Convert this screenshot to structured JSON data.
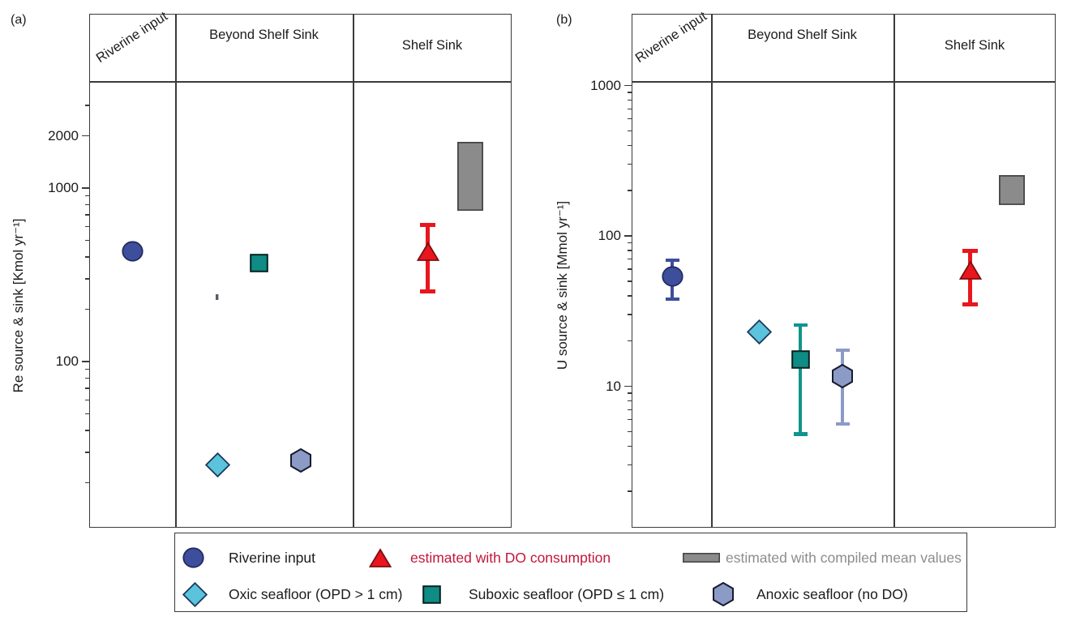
{
  "figure": {
    "background": "#ffffff"
  },
  "colors": {
    "riverine_fill": "#3D4E9C",
    "riverine_stroke": "#232B60",
    "oxic_fill": "#5CC3DC",
    "oxic_stroke": "#1A3C5E",
    "suboxic_fill": "#0E8C85",
    "suboxic_stroke": "#06211F",
    "suboxic_bar": "#10948C",
    "anoxic_fill": "#8C9AC6",
    "anoxic_stroke": "#171B2E",
    "do_est_fill": "#E9161D",
    "do_est_stroke": "#7E0E12",
    "do_est_bar": "#E9161D",
    "compiled_fill": "#8B8B8B",
    "compiled_stroke": "#474747",
    "stray_fill": "#5A5A66",
    "stray_stroke": "#5A5A66",
    "legend_red_text": "#C3173B",
    "legend_gray_text": "#8D8D8D",
    "axis": "#3a3a3a",
    "text": "#1b1b1b"
  },
  "chart_data": [
    {
      "id": "a",
      "type": "scatter",
      "panel_label": "(a)",
      "y_axis": {
        "title": "Re source & sink [Kmol yr⁻¹]",
        "unit": "Kmol yr⁻¹",
        "scale": "log",
        "range": [
          11,
          4200
        ],
        "ticks": [
          {
            "value": 2000,
            "label": "2000"
          },
          {
            "value": 1000,
            "label": "1000"
          },
          {
            "value": 100,
            "label": "100"
          }
        ]
      },
      "columns": [
        {
          "id": "riverine",
          "label": "Riverine input"
        },
        {
          "id": "beyond",
          "label": "Beyond Shelf Sink"
        },
        {
          "id": "shelf",
          "label": "Shelf Sink"
        }
      ],
      "markers": [
        {
          "name": "riverine-input",
          "series": "riverine",
          "shape": "circle",
          "column": "riverine",
          "value": 430
        },
        {
          "name": "stray-mark",
          "series": "stray",
          "shape": "dash",
          "column": "beyond",
          "value": 235
        },
        {
          "name": "suboxic-seafloor",
          "series": "suboxic",
          "shape": "square",
          "column": "beyond",
          "value": 370
        },
        {
          "name": "oxic-seafloor",
          "series": "oxic",
          "shape": "diamond",
          "column": "beyond",
          "value": 25.5
        },
        {
          "name": "anoxic-seafloor",
          "series": "anoxic",
          "shape": "hexagon",
          "column": "beyond",
          "value": 27
        },
        {
          "name": "do-consumption-estimate",
          "series": "do_est",
          "shape": "triangle",
          "column": "shelf",
          "value": 430,
          "err_lo": 255,
          "err_hi": 610
        },
        {
          "name": "compiled-mean-estimate",
          "series": "compiled",
          "shape": "box",
          "column": "shelf",
          "lo": 740,
          "hi": 1850
        }
      ]
    },
    {
      "id": "b",
      "type": "scatter",
      "panel_label": "(b)",
      "y_axis": {
        "title": "U source & sink [Mmol yr⁻¹]",
        "unit": "Mmol yr⁻¹",
        "scale": "log",
        "range": [
          1.1,
          1080
        ],
        "ticks": [
          {
            "value": 1000,
            "label": "1000"
          },
          {
            "value": 100,
            "label": "100"
          },
          {
            "value": 10,
            "label": "10"
          }
        ]
      },
      "columns": [
        {
          "id": "riverine",
          "label": "Riverine input"
        },
        {
          "id": "beyond",
          "label": "Beyond Shelf Sink"
        },
        {
          "id": "shelf",
          "label": "Shelf Sink"
        }
      ],
      "markers": [
        {
          "name": "riverine-input",
          "series": "riverine",
          "shape": "circle",
          "column": "riverine",
          "value": 54,
          "err_lo": 38,
          "err_hi": 69
        },
        {
          "name": "oxic-seafloor",
          "series": "oxic",
          "shape": "diamond",
          "column": "beyond",
          "value": 23
        },
        {
          "name": "suboxic-seafloor",
          "series": "suboxic",
          "shape": "square",
          "column": "beyond",
          "value": 15,
          "err_lo": 4.8,
          "err_hi": 25.5
        },
        {
          "name": "anoxic-seafloor",
          "series": "anoxic",
          "shape": "hexagon",
          "column": "beyond",
          "value": 11.7,
          "err_lo": 5.6,
          "err_hi": 17.4
        },
        {
          "name": "do-consumption-estimate",
          "series": "do_est",
          "shape": "triangle",
          "column": "shelf",
          "value": 59,
          "err_lo": 35,
          "err_hi": 79
        },
        {
          "name": "compiled-mean-estimate",
          "series": "compiled",
          "shape": "box",
          "column": "shelf",
          "lo": 160,
          "hi": 253
        }
      ]
    }
  ],
  "legend": {
    "rows": [
      [
        {
          "series": "riverine",
          "shape": "circle",
          "label": "Riverine input",
          "label_color": "text"
        },
        {
          "series": "do_est",
          "shape": "triangle",
          "label": "estimated with DO consumption",
          "label_color": "legend_red_text"
        },
        {
          "series": "compiled",
          "shape": "rect",
          "label": "estimated with compiled mean values",
          "label_color": "legend_gray_text"
        }
      ],
      [
        {
          "series": "oxic",
          "shape": "diamond",
          "label": "Oxic seafloor (OPD > 1 cm)",
          "label_color": "text"
        },
        {
          "series": "suboxic",
          "shape": "square",
          "label": "Suboxic seafloor (OPD ≤ 1 cm)",
          "label_color": "text"
        },
        {
          "series": "anoxic",
          "shape": "hexagon",
          "label": "Anoxic seafloor (no DO)",
          "label_color": "text"
        }
      ]
    ]
  }
}
